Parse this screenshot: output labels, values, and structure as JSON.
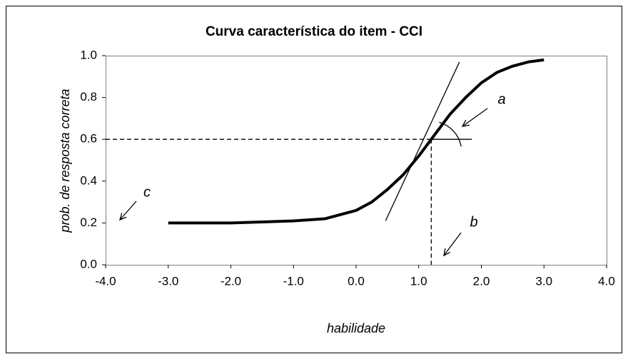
{
  "chart_data": {
    "type": "line",
    "title": "Curva característica do item - CCI",
    "x_label": "habilidade",
    "y_label": "prob. de resposta correta",
    "x": [
      -3,
      -2,
      -1,
      -0.5,
      0,
      0.25,
      0.5,
      0.75,
      1,
      1.2,
      1.5,
      1.75,
      2,
      2.25,
      2.5,
      2.75,
      3
    ],
    "values": [
      0.2,
      0.2,
      0.21,
      0.22,
      0.26,
      0.3,
      0.36,
      0.43,
      0.52,
      0.6,
      0.72,
      0.8,
      0.87,
      0.92,
      0.95,
      0.97,
      0.98
    ],
    "color": "#000000",
    "xlim": [
      -4,
      4
    ],
    "xticks": [
      {
        "value": -4,
        "label": "-4.0"
      },
      {
        "value": -3,
        "label": "-3.0"
      },
      {
        "value": -2,
        "label": "-2.0"
      },
      {
        "value": -1,
        "label": "-1.0"
      },
      {
        "value": 0,
        "label": "0.0"
      },
      {
        "value": 1,
        "label": "1.0"
      },
      {
        "value": 2,
        "label": "2.0"
      },
      {
        "value": 3,
        "label": "3.0"
      },
      {
        "value": 4,
        "label": "4.0"
      }
    ],
    "ylim": [
      0,
      1
    ],
    "yticks": [
      {
        "value": 0,
        "label": "0.0"
      },
      {
        "value": 0.2,
        "label": "0.2"
      },
      {
        "value": 0.4,
        "label": "0.4"
      },
      {
        "value": 0.6,
        "label": "0.6"
      },
      {
        "value": 0.8,
        "label": "0.8"
      },
      {
        "value": 1,
        "label": "1.0"
      }
    ],
    "guide": {
      "x": 1.2,
      "y": 0.6
    },
    "tangent": {
      "x": [
        0.47,
        1.65
      ],
      "y": [
        0.21,
        0.97
      ]
    },
    "annotations": [
      "a",
      "b",
      "c"
    ]
  }
}
